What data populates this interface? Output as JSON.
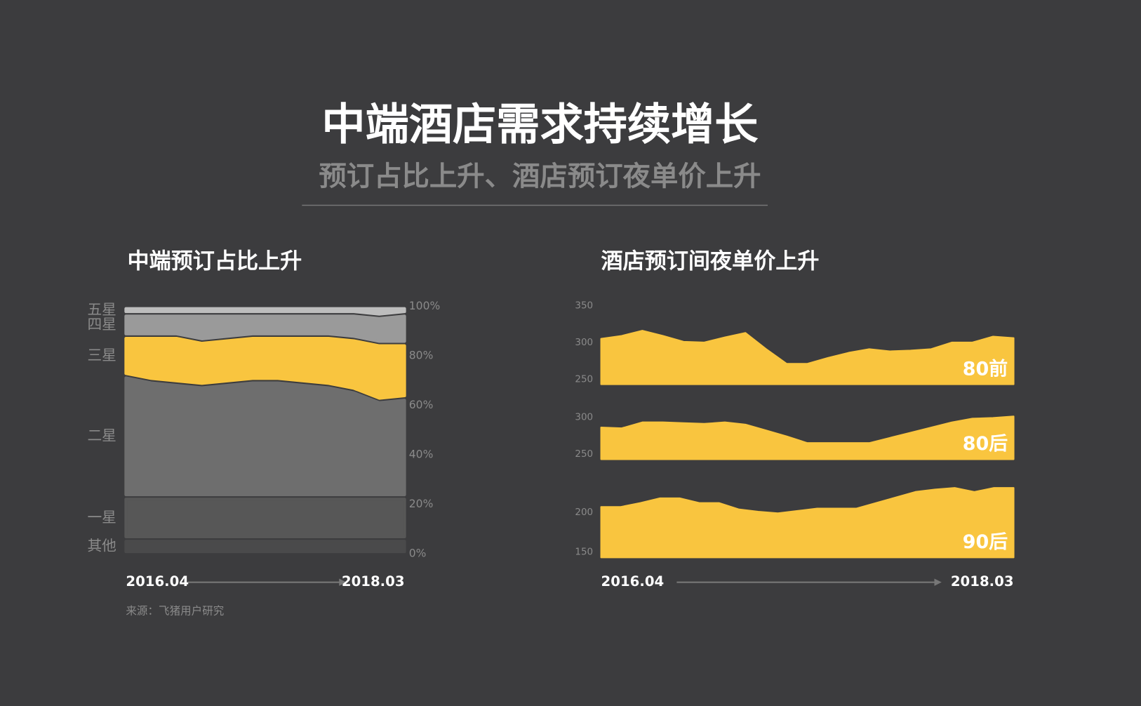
{
  "title": "中端酒店需求持续增长",
  "subtitle": "预订占比上升、酒店预订夜单价上升",
  "source": "来源：飞猪用户研究",
  "chart_data": [
    {
      "type": "stacked_area",
      "title": "中端预订占比上升",
      "categories": [
        "2016.04",
        null,
        null,
        null,
        null,
        null,
        null,
        null,
        null,
        null,
        null,
        "2018.03"
      ],
      "ylim": [
        0,
        100
      ],
      "yticks": [
        {
          "value": 0,
          "label": "0%"
        },
        {
          "value": 20,
          "label": "20%"
        },
        {
          "value": 40,
          "label": "40%"
        },
        {
          "value": 60,
          "label": "60%"
        },
        {
          "value": 80,
          "label": "80%"
        },
        {
          "value": 100,
          "label": "100%"
        }
      ],
      "series": [
        {
          "name": "五星",
          "color": "#bdbdbd",
          "values": [
            3,
            3,
            3,
            3,
            3,
            3,
            3,
            3,
            3,
            3,
            4,
            3
          ]
        },
        {
          "name": "四星",
          "color": "#9a9a9a",
          "values": [
            9,
            9,
            9,
            11,
            10,
            9,
            9,
            9,
            9,
            10,
            11,
            12
          ]
        },
        {
          "name": "三星",
          "color": "#f9c53f",
          "values": [
            16,
            18,
            19,
            18,
            18,
            18,
            18,
            19,
            20,
            21,
            23,
            22
          ]
        },
        {
          "name": "二星",
          "color": "#6e6e6e",
          "values": [
            49,
            47,
            46,
            45,
            46,
            47,
            47,
            46,
            45,
            43,
            39,
            40
          ]
        },
        {
          "name": "一星",
          "color": "#575757",
          "values": [
            17,
            17,
            17,
            17,
            17,
            17,
            17,
            17,
            17,
            17,
            17,
            17
          ]
        },
        {
          "name": "其他",
          "color": "#4a4a4b",
          "values": [
            6,
            6,
            6,
            6,
            6,
            6,
            6,
            6,
            6,
            6,
            6,
            6
          ]
        }
      ]
    },
    {
      "type": "area",
      "title": "酒店预订间夜单价上升",
      "categories": [
        null,
        null,
        null,
        null,
        null,
        null,
        null,
        null,
        null,
        null,
        null,
        null,
        null,
        null,
        null,
        null,
        null,
        null,
        null,
        null,
        null
      ],
      "ylim": [
        243,
        350
      ],
      "yticks": [
        250,
        300,
        350
      ],
      "series": [
        {
          "name": "80前",
          "color": "#f9c53f",
          "values": [
            305,
            309,
            316,
            309,
            301,
            300,
            307,
            313,
            291,
            271,
            271,
            279,
            286,
            291,
            288,
            289,
            291,
            300,
            300,
            308,
            306
          ]
        }
      ]
    },
    {
      "type": "area",
      "categories": [
        null,
        null,
        null,
        null,
        null,
        null,
        null,
        null,
        null,
        null,
        null,
        null,
        null,
        null,
        null,
        null,
        null,
        null,
        null,
        null,
        null
      ],
      "ylim": [
        243,
        305
      ],
      "yticks": [
        250,
        300
      ],
      "series": [
        {
          "name": "80后",
          "color": "#f9c53f",
          "values": [
            286,
            285,
            293,
            293,
            292,
            291,
            293,
            290,
            282,
            274,
            265,
            265,
            265,
            265,
            272,
            279,
            286,
            293,
            298,
            299,
            301
          ]
        }
      ]
    },
    {
      "type": "area",
      "categories": [
        "2016.04",
        null,
        null,
        null,
        null,
        null,
        null,
        null,
        null,
        null,
        null,
        null,
        null,
        null,
        null,
        null,
        null,
        null,
        null,
        null,
        null,
        "2018.03"
      ],
      "ylim": [
        143,
        235
      ],
      "yticks": [
        150,
        200
      ],
      "series": [
        {
          "name": "90后",
          "color": "#f9c53f",
          "values": [
            207,
            207,
            212,
            218,
            218,
            212,
            212,
            204,
            201,
            199,
            202,
            205,
            205,
            205,
            212,
            219,
            226,
            229,
            231,
            226,
            231,
            231
          ]
        }
      ]
    }
  ]
}
